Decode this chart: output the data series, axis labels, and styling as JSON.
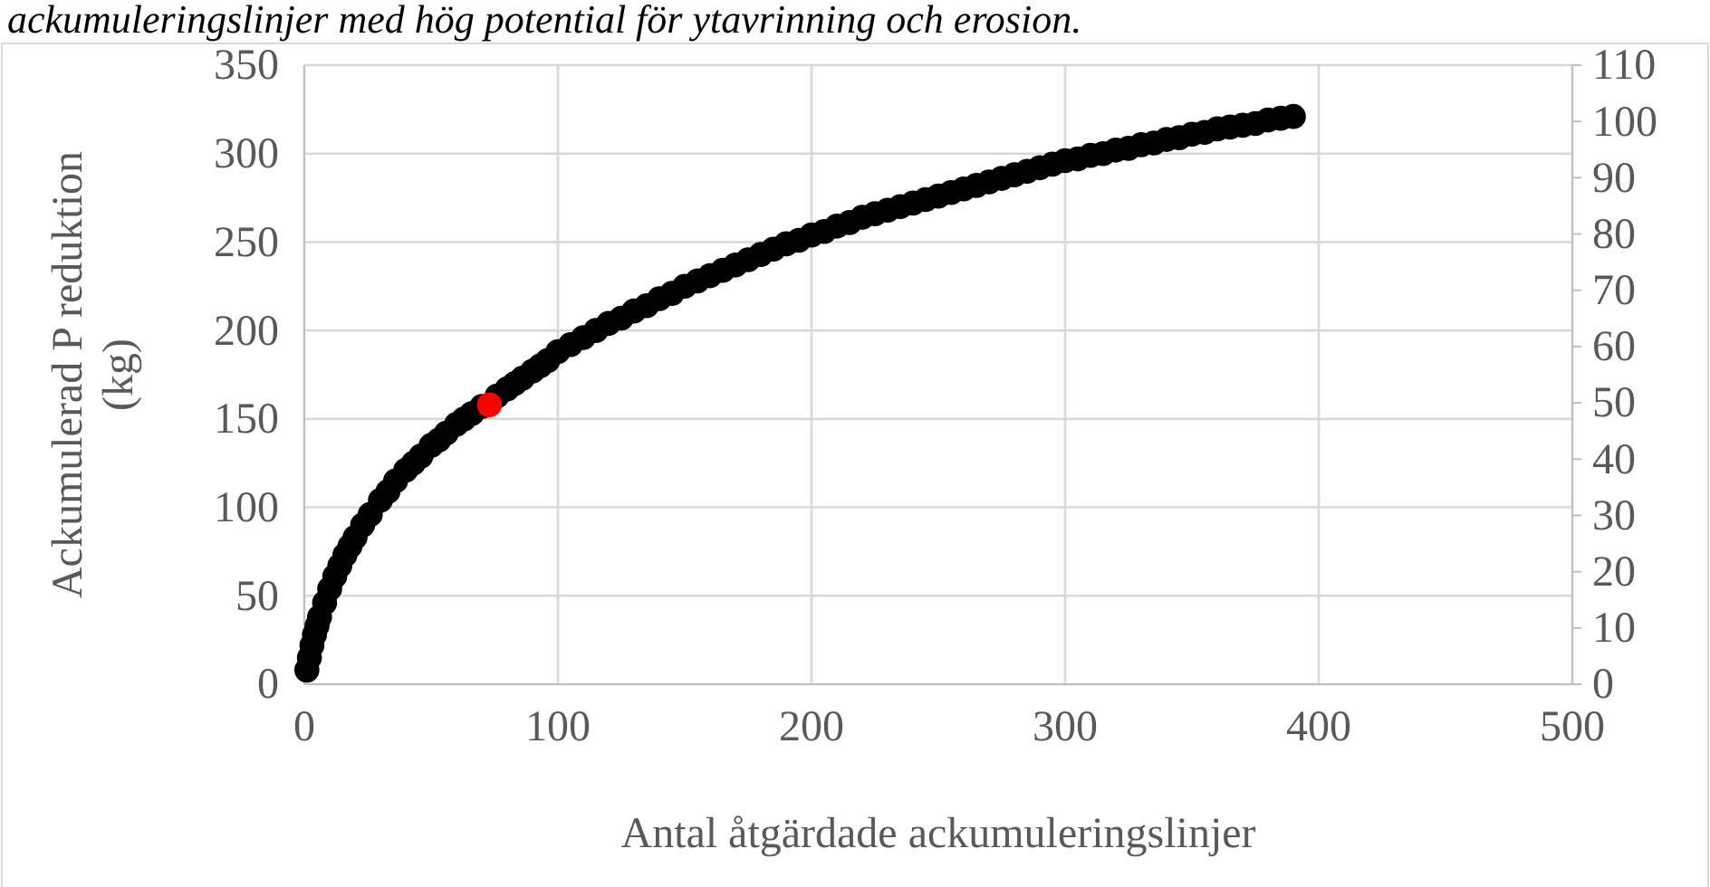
{
  "chart_data": {
    "type": "scatter",
    "title": "ackumuleringslinjer med hög potential för ytavrinning och erosion.",
    "xlabel": "Antal åtgärdade ackumuleringslinjer",
    "ylabel": "Ackumulerad P reduktion (kg)",
    "xlim": [
      0,
      500
    ],
    "xticks": [
      0,
      100,
      200,
      300,
      400,
      500
    ],
    "ylim": [
      0,
      350
    ],
    "yticks": [
      0,
      50,
      100,
      150,
      200,
      250,
      300,
      350
    ],
    "y2lim": [
      0,
      110
    ],
    "y2ticks": [
      0,
      10,
      20,
      30,
      40,
      50,
      60,
      70,
      80,
      90,
      100,
      110
    ],
    "grid": true,
    "marker": "circle",
    "series": [
      {
        "color": "#000000",
        "x": [
          1,
          2,
          3,
          4,
          5,
          6,
          8,
          10,
          12,
          14,
          16,
          18,
          20,
          23,
          26,
          30,
          33,
          36,
          40,
          43,
          46,
          50,
          53,
          56,
          60,
          63,
          66,
          70,
          76,
          80,
          83,
          86,
          90,
          93,
          96,
          100,
          105,
          110,
          115,
          120,
          125,
          130,
          135,
          140,
          145,
          150,
          155,
          160,
          165,
          170,
          175,
          180,
          185,
          190,
          195,
          200,
          205,
          210,
          215,
          220,
          225,
          230,
          235,
          240,
          245,
          250,
          255,
          260,
          265,
          270,
          275,
          280,
          285,
          290,
          295,
          300,
          305,
          310,
          315,
          320,
          325,
          330,
          335,
          340,
          345,
          350,
          355,
          360,
          365,
          370,
          375,
          380,
          385,
          390
        ],
        "values": [
          8,
          15,
          22,
          28,
          33,
          38,
          46,
          54,
          61,
          67,
          73,
          78,
          83,
          90,
          96,
          104,
          109,
          115,
          121,
          125,
          129,
          135,
          138,
          142,
          147,
          150,
          153,
          157,
          163,
          167,
          170,
          173,
          177,
          180,
          183,
          188,
          192,
          196,
          200,
          204,
          207,
          211,
          214,
          218,
          221,
          225,
          228,
          231,
          234,
          237,
          240,
          243,
          246,
          249,
          251,
          254,
          256,
          259,
          261,
          264,
          266,
          268,
          270,
          272,
          274,
          276,
          278,
          280,
          282,
          284,
          286,
          288,
          290,
          292,
          294,
          296,
          297,
          299,
          300,
          302,
          303,
          305,
          306,
          308,
          309,
          311,
          312,
          314,
          315,
          316,
          317,
          319,
          320,
          321
        ]
      },
      {
        "color": "#ff0000",
        "x": [
          73
        ],
        "values": [
          158
        ]
      }
    ]
  }
}
